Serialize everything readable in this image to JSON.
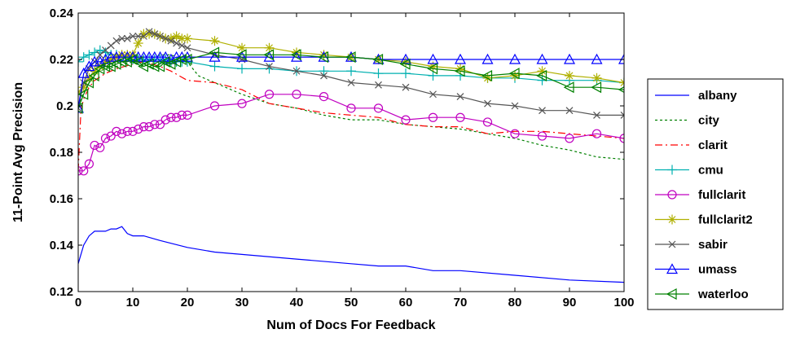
{
  "chart_data": {
    "type": "line",
    "title": "",
    "xlabel": "Num of Docs For Feedback",
    "ylabel": "11-Point Avg Precision",
    "xlim": [
      0,
      100
    ],
    "ylim": [
      0.12,
      0.24
    ],
    "xticks": [
      0,
      10,
      20,
      30,
      40,
      50,
      60,
      70,
      80,
      90,
      100
    ],
    "yticks": [
      0.12,
      0.14,
      0.16,
      0.18,
      0.2,
      0.22,
      0.24
    ],
    "ytick_labels": [
      "0.12",
      "0.14",
      "0.16",
      "0.18",
      "0.2",
      "0.22",
      "0.24"
    ],
    "grid": false,
    "legend_position": "right",
    "series": [
      {
        "name": "albany",
        "color": "#0000ff",
        "line": "solid",
        "marker": "none",
        "x": [
          0,
          1,
          2,
          3,
          4,
          5,
          6,
          7,
          8,
          9,
          10,
          12,
          15,
          20,
          25,
          30,
          40,
          50,
          55,
          60,
          65,
          70,
          80,
          90,
          100
        ],
        "y": [
          0.132,
          0.14,
          0.144,
          0.146,
          0.146,
          0.146,
          0.147,
          0.147,
          0.148,
          0.145,
          0.144,
          0.144,
          0.142,
          0.139,
          0.137,
          0.136,
          0.134,
          0.132,
          0.131,
          0.131,
          0.129,
          0.129,
          0.127,
          0.125,
          0.124
        ]
      },
      {
        "name": "city",
        "color": "#008000",
        "line": "dotted",
        "marker": "none",
        "x": [
          0,
          1,
          2,
          3,
          5,
          7,
          10,
          12,
          15,
          17,
          20,
          22,
          25,
          30,
          35,
          40,
          45,
          50,
          55,
          60,
          65,
          70,
          75,
          80,
          85,
          90,
          95,
          100
        ],
        "y": [
          0.2,
          0.206,
          0.21,
          0.214,
          0.216,
          0.217,
          0.219,
          0.219,
          0.222,
          0.222,
          0.219,
          0.213,
          0.21,
          0.205,
          0.201,
          0.199,
          0.196,
          0.194,
          0.194,
          0.192,
          0.191,
          0.19,
          0.188,
          0.186,
          0.183,
          0.181,
          0.178,
          0.177
        ]
      },
      {
        "name": "clarit",
        "color": "#ff0000",
        "line": "dashdot",
        "marker": "none",
        "x": [
          0,
          0.5,
          1,
          2,
          3,
          5,
          7,
          10,
          12,
          15,
          17,
          20,
          25,
          30,
          35,
          40,
          45,
          50,
          55,
          60,
          65,
          70,
          75,
          80,
          85,
          90,
          95,
          100
        ],
        "y": [
          0.172,
          0.198,
          0.203,
          0.208,
          0.211,
          0.214,
          0.216,
          0.218,
          0.219,
          0.217,
          0.215,
          0.211,
          0.21,
          0.207,
          0.201,
          0.199,
          0.197,
          0.196,
          0.195,
          0.192,
          0.191,
          0.191,
          0.188,
          0.189,
          0.189,
          0.188,
          0.187,
          0.186
        ]
      },
      {
        "name": "cmu",
        "color": "#00b0b0",
        "line": "solid",
        "marker": "plus",
        "x": [
          0,
          1,
          2,
          3,
          4,
          5,
          6,
          7,
          8,
          9,
          10,
          11,
          12,
          13,
          14,
          15,
          16,
          17,
          18,
          19,
          20,
          25,
          30,
          35,
          40,
          45,
          50,
          55,
          60,
          65,
          70,
          75,
          80,
          85,
          90,
          95,
          100
        ],
        "y": [
          0.219,
          0.221,
          0.222,
          0.223,
          0.224,
          0.223,
          0.222,
          0.222,
          0.221,
          0.221,
          0.22,
          0.22,
          0.22,
          0.22,
          0.22,
          0.22,
          0.22,
          0.219,
          0.219,
          0.219,
          0.219,
          0.217,
          0.216,
          0.216,
          0.215,
          0.215,
          0.215,
          0.214,
          0.214,
          0.213,
          0.213,
          0.212,
          0.212,
          0.211,
          0.211,
          0.211,
          0.21
        ]
      },
      {
        "name": "fullclarit",
        "color": "#c000c0",
        "line": "solid",
        "marker": "circle",
        "x": [
          0,
          1,
          2,
          3,
          4,
          5,
          6,
          7,
          8,
          9,
          10,
          11,
          12,
          13,
          14,
          15,
          16,
          17,
          18,
          19,
          20,
          25,
          30,
          35,
          40,
          45,
          50,
          55,
          60,
          65,
          70,
          75,
          80,
          85,
          90,
          95,
          100
        ],
        "y": [
          0.172,
          0.172,
          0.175,
          0.183,
          0.182,
          0.186,
          0.187,
          0.189,
          0.188,
          0.189,
          0.189,
          0.19,
          0.191,
          0.191,
          0.192,
          0.192,
          0.194,
          0.195,
          0.195,
          0.196,
          0.196,
          0.2,
          0.201,
          0.205,
          0.205,
          0.204,
          0.199,
          0.199,
          0.194,
          0.195,
          0.195,
          0.193,
          0.188,
          0.187,
          0.186,
          0.188,
          0.186
        ]
      },
      {
        "name": "fullclarit2",
        "color": "#b0b000",
        "line": "solid",
        "marker": "star",
        "x": [
          0,
          1,
          2,
          3,
          4,
          5,
          6,
          7,
          8,
          9,
          10,
          11,
          12,
          13,
          14,
          15,
          16,
          17,
          18,
          19,
          20,
          25,
          30,
          35,
          40,
          45,
          50,
          55,
          60,
          65,
          70,
          75,
          80,
          85,
          90,
          95,
          100
        ],
        "y": [
          0.206,
          0.208,
          0.212,
          0.215,
          0.217,
          0.219,
          0.22,
          0.221,
          0.222,
          0.222,
          0.222,
          0.227,
          0.231,
          0.231,
          0.231,
          0.23,
          0.229,
          0.229,
          0.23,
          0.229,
          0.229,
          0.228,
          0.225,
          0.225,
          0.223,
          0.222,
          0.221,
          0.22,
          0.219,
          0.217,
          0.216,
          0.212,
          0.213,
          0.215,
          0.213,
          0.212,
          0.21
        ]
      },
      {
        "name": "sabir",
        "color": "#555555",
        "line": "solid",
        "marker": "x",
        "x": [
          0,
          1,
          2,
          3,
          4,
          5,
          6,
          7,
          8,
          9,
          10,
          11,
          12,
          13,
          14,
          15,
          16,
          17,
          18,
          19,
          20,
          25,
          30,
          35,
          40,
          45,
          50,
          55,
          60,
          65,
          70,
          75,
          80,
          85,
          90,
          95,
          100
        ],
        "y": [
          0.199,
          0.21,
          0.216,
          0.219,
          0.222,
          0.224,
          0.226,
          0.228,
          0.229,
          0.229,
          0.23,
          0.23,
          0.23,
          0.232,
          0.231,
          0.23,
          0.229,
          0.228,
          0.227,
          0.226,
          0.225,
          0.222,
          0.22,
          0.217,
          0.215,
          0.213,
          0.21,
          0.209,
          0.208,
          0.205,
          0.204,
          0.201,
          0.2,
          0.198,
          0.198,
          0.196,
          0.196
        ]
      },
      {
        "name": "umass",
        "color": "#0000ff",
        "line": "solid",
        "marker": "triangle",
        "x": [
          0,
          1,
          2,
          3,
          4,
          5,
          6,
          7,
          8,
          9,
          10,
          11,
          12,
          13,
          14,
          15,
          16,
          17,
          18,
          19,
          20,
          25,
          30,
          35,
          40,
          45,
          50,
          55,
          60,
          65,
          70,
          75,
          80,
          85,
          90,
          95,
          100
        ],
        "y": [
          0.199,
          0.214,
          0.217,
          0.219,
          0.219,
          0.22,
          0.221,
          0.221,
          0.221,
          0.221,
          0.221,
          0.221,
          0.221,
          0.221,
          0.221,
          0.221,
          0.221,
          0.22,
          0.221,
          0.221,
          0.221,
          0.221,
          0.221,
          0.221,
          0.221,
          0.221,
          0.221,
          0.22,
          0.22,
          0.22,
          0.22,
          0.22,
          0.22,
          0.22,
          0.22,
          0.22,
          0.22
        ]
      },
      {
        "name": "waterloo",
        "color": "#008000",
        "line": "solid",
        "marker": "triangle-left",
        "x": [
          0,
          1,
          2,
          3,
          4,
          5,
          6,
          7,
          8,
          9,
          10,
          11,
          12,
          13,
          14,
          15,
          16,
          17,
          18,
          19,
          20,
          25,
          30,
          35,
          40,
          45,
          50,
          55,
          60,
          65,
          70,
          75,
          80,
          85,
          90,
          95,
          100
        ],
        "y": [
          0.199,
          0.205,
          0.21,
          0.213,
          0.216,
          0.217,
          0.217,
          0.218,
          0.219,
          0.219,
          0.22,
          0.219,
          0.217,
          0.218,
          0.217,
          0.217,
          0.219,
          0.218,
          0.219,
          0.22,
          0.22,
          0.223,
          0.222,
          0.222,
          0.222,
          0.221,
          0.221,
          0.22,
          0.218,
          0.216,
          0.215,
          0.213,
          0.214,
          0.213,
          0.208,
          0.208,
          0.207
        ]
      }
    ]
  }
}
